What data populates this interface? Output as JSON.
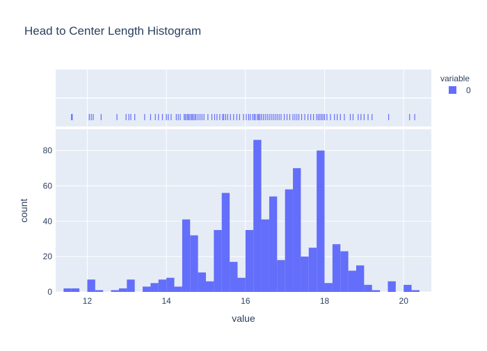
{
  "chart_data": {
    "type": "bar",
    "title": "Head to Center Length Histogram",
    "xlabel": "value",
    "ylabel": "count",
    "xlim": [
      11.2,
      20.7
    ],
    "ylim": [
      0,
      92
    ],
    "x_ticks": [
      12,
      14,
      16,
      18,
      20
    ],
    "y_ticks": [
      0,
      20,
      40,
      60,
      80
    ],
    "grid": true,
    "legend": {
      "title": "variable",
      "placement": "top-right"
    },
    "bin_width": 0.2,
    "series": [
      {
        "name": "0",
        "color": "#636efa",
        "bins": [
          {
            "x0": 11.4,
            "x1": 11.6,
            "count": 2
          },
          {
            "x0": 11.6,
            "x1": 11.8,
            "count": 2
          },
          {
            "x0": 12.0,
            "x1": 12.2,
            "count": 7
          },
          {
            "x0": 12.2,
            "x1": 12.4,
            "count": 1
          },
          {
            "x0": 12.6,
            "x1": 12.8,
            "count": 1
          },
          {
            "x0": 12.8,
            "x1": 13.0,
            "count": 2
          },
          {
            "x0": 13.0,
            "x1": 13.2,
            "count": 7
          },
          {
            "x0": 13.4,
            "x1": 13.6,
            "count": 3
          },
          {
            "x0": 13.6,
            "x1": 13.8,
            "count": 5
          },
          {
            "x0": 13.8,
            "x1": 14.0,
            "count": 7
          },
          {
            "x0": 14.0,
            "x1": 14.2,
            "count": 8
          },
          {
            "x0": 14.2,
            "x1": 14.4,
            "count": 3
          },
          {
            "x0": 14.4,
            "x1": 14.6,
            "count": 41
          },
          {
            "x0": 14.6,
            "x1": 14.8,
            "count": 32
          },
          {
            "x0": 14.8,
            "x1": 15.0,
            "count": 11
          },
          {
            "x0": 15.0,
            "x1": 15.2,
            "count": 6
          },
          {
            "x0": 15.2,
            "x1": 15.4,
            "count": 35
          },
          {
            "x0": 15.4,
            "x1": 15.6,
            "count": 56
          },
          {
            "x0": 15.6,
            "x1": 15.8,
            "count": 17
          },
          {
            "x0": 15.8,
            "x1": 16.0,
            "count": 8
          },
          {
            "x0": 16.0,
            "x1": 16.2,
            "count": 35
          },
          {
            "x0": 16.2,
            "x1": 16.4,
            "count": 86
          },
          {
            "x0": 16.4,
            "x1": 16.6,
            "count": 41
          },
          {
            "x0": 16.6,
            "x1": 16.8,
            "count": 54
          },
          {
            "x0": 16.8,
            "x1": 17.0,
            "count": 18
          },
          {
            "x0": 17.0,
            "x1": 17.2,
            "count": 58
          },
          {
            "x0": 17.2,
            "x1": 17.4,
            "count": 70
          },
          {
            "x0": 17.4,
            "x1": 17.6,
            "count": 20
          },
          {
            "x0": 17.6,
            "x1": 17.8,
            "count": 25
          },
          {
            "x0": 17.8,
            "x1": 18.0,
            "count": 80
          },
          {
            "x0": 18.0,
            "x1": 18.2,
            "count": 5
          },
          {
            "x0": 18.2,
            "x1": 18.4,
            "count": 27
          },
          {
            "x0": 18.4,
            "x1": 18.6,
            "count": 23
          },
          {
            "x0": 18.6,
            "x1": 18.8,
            "count": 12
          },
          {
            "x0": 18.8,
            "x1": 19.0,
            "count": 15
          },
          {
            "x0": 19.0,
            "x1": 19.2,
            "count": 4
          },
          {
            "x0": 19.2,
            "x1": 19.4,
            "count": 1
          },
          {
            "x0": 19.6,
            "x1": 19.8,
            "count": 6
          },
          {
            "x0": 20.0,
            "x1": 20.2,
            "count": 4
          },
          {
            "x0": 20.2,
            "x1": 20.4,
            "count": 1
          }
        ],
        "rug_values": [
          11.6,
          11.62,
          12.05,
          12.1,
          12.15,
          12.35,
          12.75,
          12.98,
          13.05,
          13.1,
          13.2,
          13.45,
          13.6,
          13.72,
          13.8,
          13.9,
          14.0,
          14.05,
          14.12,
          14.25,
          14.3,
          14.35,
          14.45,
          14.48,
          14.52,
          14.55,
          14.58,
          14.62,
          14.65,
          14.68,
          14.72,
          14.75,
          14.8,
          14.85,
          14.9,
          14.95,
          15.05,
          15.15,
          15.22,
          15.28,
          15.35,
          15.42,
          15.45,
          15.5,
          15.55,
          15.62,
          15.7,
          15.78,
          15.85,
          15.95,
          16.02,
          16.08,
          16.12,
          16.18,
          16.22,
          16.25,
          16.3,
          16.33,
          16.36,
          16.4,
          16.45,
          16.5,
          16.55,
          16.6,
          16.65,
          16.7,
          16.75,
          16.8,
          16.85,
          16.9,
          16.98,
          17.05,
          17.12,
          17.2,
          17.25,
          17.3,
          17.35,
          17.42,
          17.5,
          17.58,
          17.65,
          17.72,
          17.8,
          17.84,
          17.88,
          17.92,
          17.96,
          18.0,
          18.06,
          18.15,
          18.25,
          18.32,
          18.4,
          18.5,
          18.65,
          18.72,
          18.85,
          18.92,
          19.0,
          19.1,
          19.2,
          19.62,
          20.15,
          20.28
        ]
      }
    ]
  }
}
